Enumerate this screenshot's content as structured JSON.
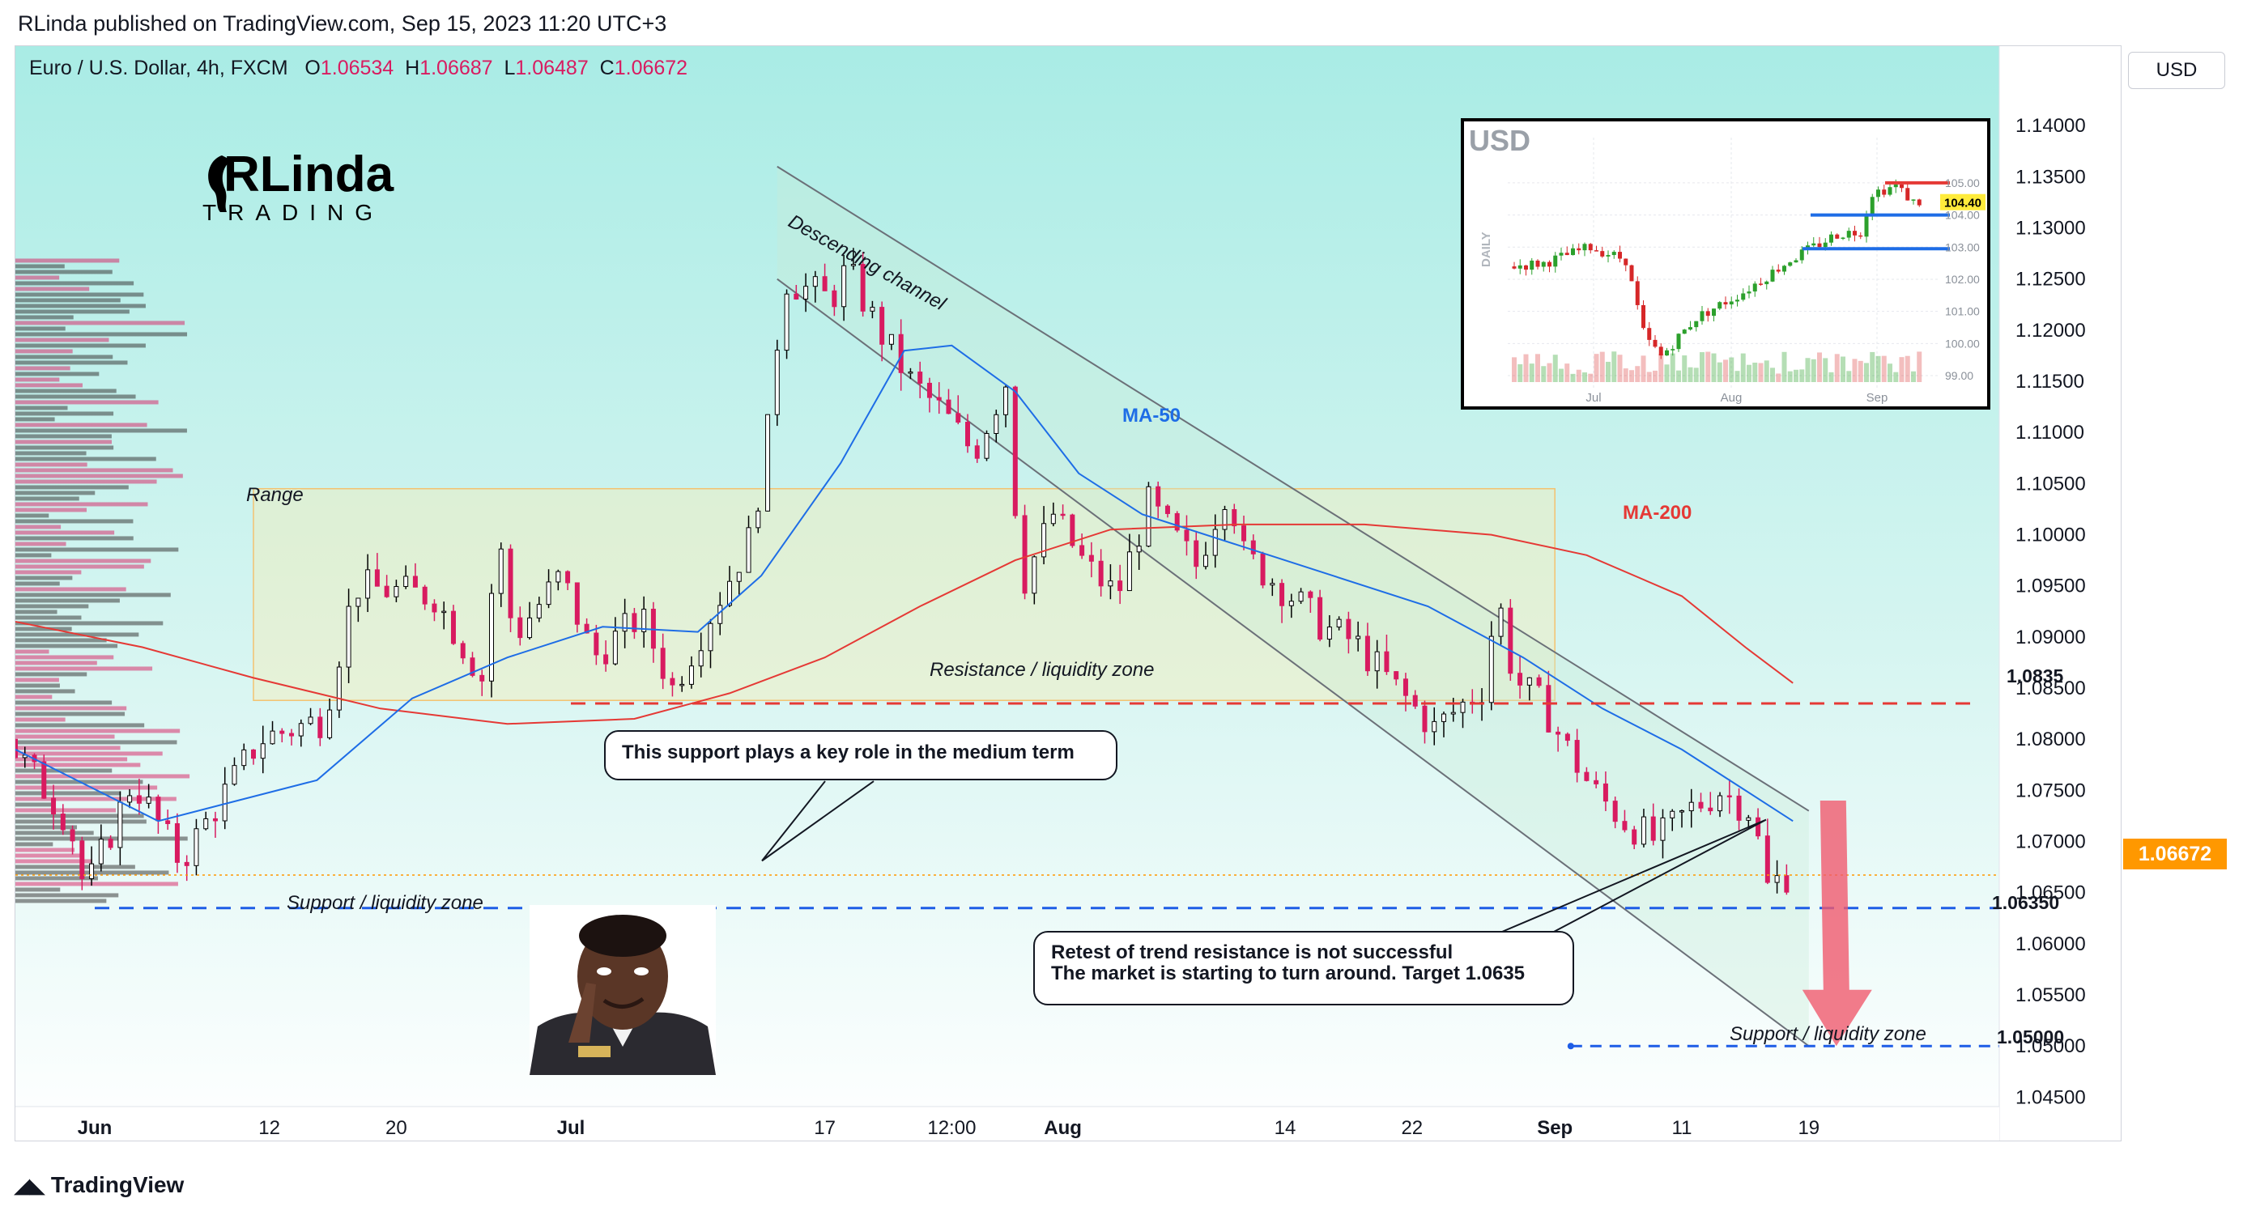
{
  "header": {
    "publisher": "RLinda published on TradingView.com, Sep 15, 2023 11:20 UTC+3",
    "symbol": "Euro / U.S. Dollar, 4h, FXCM",
    "o_label": "O",
    "o": "1.06534",
    "h_label": "H",
    "h": "1.06687",
    "l_label": "L",
    "l": "1.06487",
    "c_label": "C",
    "c": "1.06672",
    "currency_button": "USD"
  },
  "footer": {
    "brand": "TradingView"
  },
  "logo": {
    "text": "RLinda",
    "sub": "TRADING"
  },
  "levels": {
    "resistance": "1.0835",
    "support": "1.06350",
    "target": "1.05000",
    "current": "1.06672"
  },
  "annotations": {
    "range": "Range",
    "channel": "Descending channel",
    "ma50": "MA-50",
    "ma200": "MA-200",
    "resistance_zone": "Resistance / liquidity zone",
    "support_zone": "Support / liquidity zone",
    "support_zone_2": "Support / liquidity zone",
    "callout_1": "This support plays a key role in the medium term",
    "callout_2_line1": "Retest of trend resistance is not successful",
    "callout_2_line2": "The market is starting to turn around. Target 1.0635"
  },
  "colors": {
    "up": "#000000",
    "down": "#d81b60",
    "ma50": "#1e6de6",
    "ma200": "#e53935",
    "resistance": "#e53935",
    "support": "#1e5de6",
    "current": "#ff9800",
    "arrow": "#f05a6e"
  },
  "chart_data": [
    {
      "type": "candlestick",
      "title": "Euro / U.S. Dollar, 4h, FXCM",
      "ylim": [
        1.0425,
        1.1435
      ],
      "y_ticks": [
        "1.14000",
        "1.13500",
        "1.13000",
        "1.12500",
        "1.12000",
        "1.11500",
        "1.11000",
        "1.10500",
        "1.10000",
        "1.09500",
        "1.09000",
        "1.08500",
        "1.08000",
        "1.07500",
        "1.07000",
        "1.06500",
        "1.06000",
        "1.05500",
        "1.05000",
        "1.04500"
      ],
      "x_ticks": [
        "Jun",
        "12",
        "20",
        "Jul",
        "17",
        "12:00",
        "Aug",
        "14",
        "22",
        "Sep",
        "11",
        "19"
      ],
      "x_tick_days": [
        0,
        11,
        19,
        30,
        46,
        54,
        61,
        75,
        83,
        92,
        100,
        108
      ],
      "x_range_days": [
        -5,
        120
      ],
      "price_path": [
        [
          -5,
          1.08
        ],
        [
          -1,
          1.072
        ],
        [
          0,
          1.065
        ],
        [
          3,
          1.076
        ],
        [
          6,
          1.068
        ],
        [
          11,
          1.08
        ],
        [
          15,
          1.082
        ],
        [
          17,
          1.095
        ],
        [
          22,
          1.094
        ],
        [
          25,
          1.086
        ],
        [
          26,
          1.1
        ],
        [
          27,
          1.09
        ],
        [
          30,
          1.096
        ],
        [
          32,
          1.088
        ],
        [
          35,
          1.092
        ],
        [
          37,
          1.085
        ],
        [
          39,
          1.091
        ],
        [
          42,
          1.1
        ],
        [
          43,
          1.11
        ],
        [
          44,
          1.125
        ],
        [
          47,
          1.123
        ],
        [
          48,
          1.126
        ],
        [
          50,
          1.12
        ],
        [
          52,
          1.115
        ],
        [
          54,
          1.112
        ],
        [
          56,
          1.108
        ],
        [
          58,
          1.115
        ],
        [
          59,
          1.095
        ],
        [
          61,
          1.102
        ],
        [
          63,
          1.097
        ],
        [
          65,
          1.094
        ],
        [
          67,
          1.103
        ],
        [
          70,
          1.097
        ],
        [
          72,
          1.105
        ],
        [
          73,
          1.098
        ],
        [
          76,
          1.094
        ],
        [
          78,
          1.091
        ],
        [
          80,
          1.0895
        ],
        [
          82,
          1.086
        ],
        [
          85,
          1.081
        ],
        [
          88,
          1.085
        ],
        [
          89,
          1.094
        ],
        [
          90,
          1.086
        ],
        [
          92,
          1.083
        ],
        [
          93,
          1.08
        ],
        [
          95,
          1.075
        ],
        [
          97,
          1.072
        ],
        [
          99,
          1.07
        ],
        [
          101,
          1.073
        ],
        [
          103,
          1.075
        ],
        [
          105,
          1.073
        ],
        [
          106,
          1.0655
        ],
        [
          107,
          1.0667
        ]
      ],
      "ma50": [
        [
          -5,
          1.079
        ],
        [
          4,
          1.072
        ],
        [
          9,
          1.074
        ],
        [
          14,
          1.076
        ],
        [
          20,
          1.084
        ],
        [
          26,
          1.088
        ],
        [
          32,
          1.091
        ],
        [
          38,
          1.0905
        ],
        [
          42,
          1.096
        ],
        [
          47,
          1.107
        ],
        [
          51,
          1.118
        ],
        [
          54,
          1.1185
        ],
        [
          58,
          1.114
        ],
        [
          62,
          1.106
        ],
        [
          66,
          1.102
        ],
        [
          72,
          1.099
        ],
        [
          78,
          1.096
        ],
        [
          84,
          1.093
        ],
        [
          90,
          1.088
        ],
        [
          95,
          1.083
        ],
        [
          100,
          1.079
        ],
        [
          104,
          1.075
        ],
        [
          107,
          1.072
        ]
      ],
      "ma200": [
        [
          -5,
          1.0915
        ],
        [
          3,
          1.089
        ],
        [
          10,
          1.086
        ],
        [
          18,
          1.083
        ],
        [
          26,
          1.0815
        ],
        [
          34,
          1.082
        ],
        [
          40,
          1.0845
        ],
        [
          46,
          1.088
        ],
        [
          52,
          1.093
        ],
        [
          58,
          1.0975
        ],
        [
          64,
          1.1005
        ],
        [
          72,
          1.101
        ],
        [
          80,
          1.101
        ],
        [
          88,
          1.1
        ],
        [
          94,
          1.098
        ],
        [
          100,
          1.094
        ],
        [
          104,
          1.089
        ],
        [
          107,
          1.0855
        ]
      ],
      "resistance_level": 1.0835,
      "support_level": 1.0635,
      "target_level": 1.05,
      "current_price": 1.06672
    },
    {
      "type": "candlestick",
      "title": "USD",
      "ylabel": "DAILY",
      "y_ticks": [
        "105.00",
        "104.00",
        "103.00",
        "102.00",
        "101.00",
        "100.00",
        "99.00"
      ],
      "x_ticks": [
        "Jul",
        "Aug",
        "Sep"
      ],
      "last_price": "104.40",
      "ylim": [
        98.8,
        105.4
      ]
    }
  ]
}
